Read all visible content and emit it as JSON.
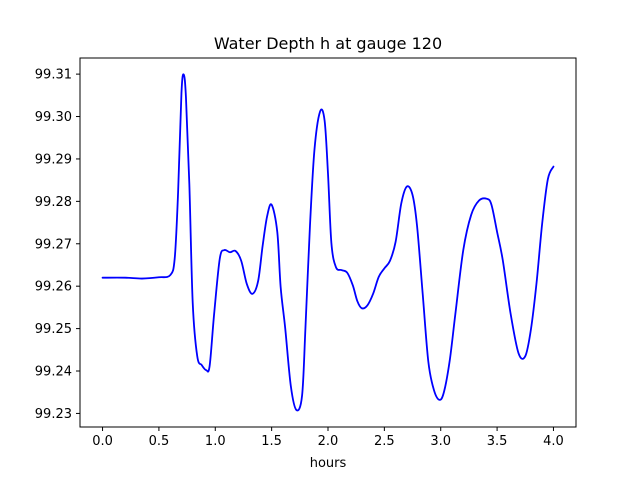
{
  "chart_data": {
    "type": "line",
    "title": "Water Depth h at gauge 120",
    "xlabel": "hours",
    "ylabel": "",
    "xlim": [
      -0.2,
      4.2
    ],
    "ylim": [
      99.2268,
      99.3138
    ],
    "xticks": [
      0.0,
      0.5,
      1.0,
      1.5,
      2.0,
      2.5,
      3.0,
      3.5,
      4.0
    ],
    "xtick_labels": [
      "0.0",
      "0.5",
      "1.0",
      "1.5",
      "2.0",
      "2.5",
      "3.0",
      "3.5",
      "4.0"
    ],
    "yticks": [
      99.23,
      99.24,
      99.25,
      99.26,
      99.27,
      99.28,
      99.29,
      99.3,
      99.31
    ],
    "ytick_labels": [
      "99.23",
      "99.24",
      "99.25",
      "99.26",
      "99.27",
      "99.28",
      "99.29",
      "99.30",
      "99.31"
    ],
    "grid": false,
    "series": [
      {
        "color": "#0000ff",
        "x": [
          0.0,
          0.2,
          0.35,
          0.5,
          0.6,
          0.64,
          0.67,
          0.7,
          0.72,
          0.74,
          0.77,
          0.8,
          0.84,
          0.88,
          0.92,
          0.95,
          0.99,
          1.04,
          1.08,
          1.13,
          1.18,
          1.23,
          1.28,
          1.33,
          1.38,
          1.42,
          1.46,
          1.5,
          1.55,
          1.58,
          1.62,
          1.67,
          1.72,
          1.77,
          1.8,
          1.84,
          1.88,
          1.93,
          1.97,
          2.0,
          2.03,
          2.07,
          2.12,
          2.17,
          2.22,
          2.26,
          2.3,
          2.35,
          2.4,
          2.45,
          2.5,
          2.55,
          2.6,
          2.65,
          2.7,
          2.75,
          2.79,
          2.84,
          2.89,
          2.94,
          2.99,
          3.03,
          3.08,
          3.13,
          3.2,
          3.27,
          3.34,
          3.41,
          3.45,
          3.5,
          3.55,
          3.62,
          3.69,
          3.75,
          3.8,
          3.85,
          3.9,
          3.95,
          4.0
        ],
        "y": [
          99.262,
          99.262,
          99.2618,
          99.2621,
          99.2626,
          99.2665,
          99.282,
          99.3055,
          99.3099,
          99.3045,
          99.284,
          99.256,
          99.2435,
          99.2414,
          99.2402,
          99.2412,
          99.2535,
          99.2665,
          99.2685,
          99.268,
          99.2683,
          99.266,
          99.2605,
          99.2582,
          99.2612,
          99.2695,
          99.2765,
          99.2792,
          99.2728,
          99.2598,
          99.2502,
          99.2365,
          99.2308,
          99.2342,
          99.2502,
          99.2742,
          99.2922,
          99.3012,
          99.299,
          99.2865,
          99.2702,
          99.2645,
          99.2638,
          99.2632,
          99.2602,
          99.2565,
          99.2548,
          99.2555,
          99.2582,
          99.2622,
          99.2642,
          99.266,
          99.2705,
          99.2795,
          99.2835,
          99.2815,
          99.2742,
          99.2582,
          99.2422,
          99.2355,
          99.2332,
          99.2352,
          99.2425,
          99.2535,
          99.2685,
          99.2768,
          99.2802,
          99.2806,
          99.2792,
          99.2728,
          99.2662,
          99.2535,
          99.2442,
          99.2435,
          99.2498,
          99.2608,
          99.2748,
          99.2852,
          99.2882
        ]
      }
    ]
  }
}
